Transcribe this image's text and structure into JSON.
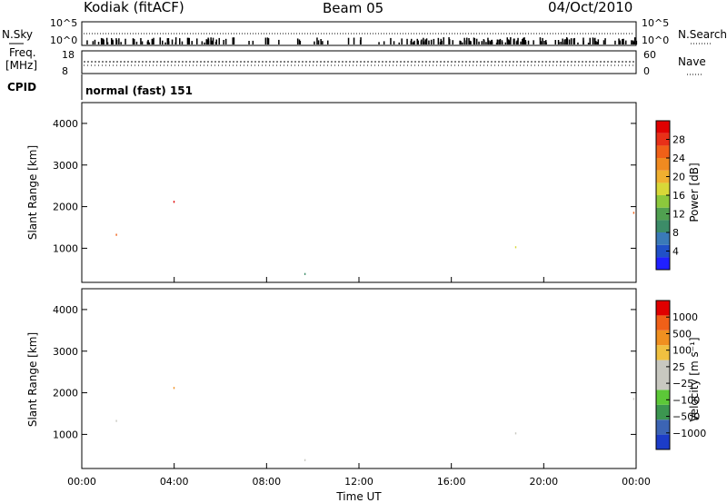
{
  "header": {
    "radar": "Kodiak (fitACF)",
    "beam": "Beam 05",
    "date": "04/Oct/2010"
  },
  "top_panel": {
    "left_label": "N.Sky",
    "right_label": "N.Search",
    "left_ticks": [
      "10^5",
      "10^0"
    ],
    "right_ticks": [
      "10^5",
      "10^0"
    ]
  },
  "freq_panel": {
    "left_label_1": "Freq.",
    "left_label_2": "[MHz]",
    "right_label": "Nave",
    "left_ticks": [
      "18",
      "8"
    ],
    "right_ticks": [
      "60",
      "0"
    ]
  },
  "cpid": {
    "label": "CPID",
    "text": "normal (fast) 151"
  },
  "chart_data": [
    {
      "type": "heatmap",
      "quantity": "Power",
      "ylabel": "Slant Range [km]",
      "ylim": [
        180,
        4500
      ],
      "yticks": [
        1000,
        2000,
        3000,
        4000
      ],
      "xlim": [
        0,
        24
      ],
      "xticks": [
        "00:00",
        "04:00",
        "08:00",
        "12:00",
        "16:00",
        "20:00",
        "00:00"
      ],
      "colorbar": {
        "label": "Power [dB]",
        "ticks": [
          "28",
          "24",
          "20",
          "16",
          "12",
          "8",
          "4"
        ],
        "colors": [
          "#2020ff",
          "#2050c8",
          "#3a7ab8",
          "#3c8c68",
          "#50a050",
          "#8cc83c",
          "#d8d838",
          "#f0b030",
          "#f08a20",
          "#f06018",
          "#e83018",
          "#e00000"
        ]
      }
    },
    {
      "type": "heatmap",
      "quantity": "Velocity",
      "ylabel": "Slant Range [km]",
      "xlabel": "Time UT",
      "ylim": [
        180,
        4500
      ],
      "yticks": [
        1000,
        2000,
        3000,
        4000
      ],
      "xlim": [
        0,
        24
      ],
      "xticks": [
        "00:00",
        "04:00",
        "08:00",
        "12:00",
        "16:00",
        "20:00",
        "00:00"
      ],
      "colorbar": {
        "label": "Velocity [m s⁻¹]",
        "ticks": [
          "1000",
          "500",
          "100",
          "25",
          "−25",
          "−100",
          "−500",
          "−1000"
        ],
        "colors": [
          "#1c3cc8",
          "#3c64b4",
          "#3c9650",
          "#5cc838",
          "#c8c8c0",
          "#c8c8c0",
          "#f0c040",
          "#f09020",
          "#f06018",
          "#e00000"
        ]
      }
    }
  ]
}
